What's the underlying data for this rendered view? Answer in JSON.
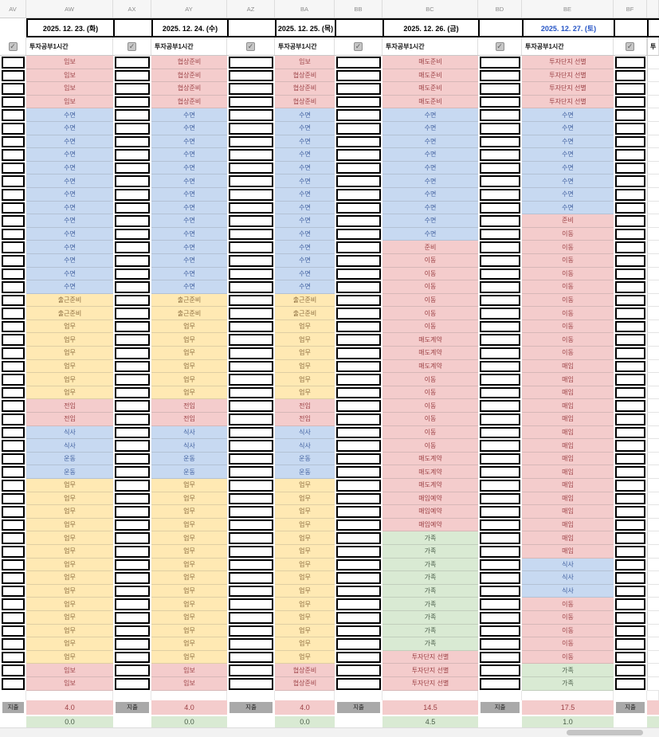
{
  "sheet": {
    "column_headers": [
      "AV",
      "AW",
      "AX",
      "AY",
      "AZ",
      "BA",
      "BB",
      "BC",
      "BD",
      "BE",
      "BF",
      ""
    ],
    "checkbox_row_label": "투자공부1시간",
    "next_day_partial_label": "투",
    "totals_label": "지출",
    "icons": {
      "checkbox_checked": "✓"
    },
    "colors": {
      "pink": {
        "bg": "#F4CCCC",
        "fg": "#9C4145"
      },
      "blue": {
        "bg": "#C7D9F1",
        "fg": "#3F5E9E"
      },
      "yellow": {
        "bg": "#FFE9B3",
        "fg": "#8A6B3D"
      },
      "green": {
        "bg": "#D9EAD3",
        "fg": "#4A5D49"
      },
      "saturday_date": "#2353C5",
      "weekday_date": "#000000",
      "totals_label_bg": "#A9A9A9"
    },
    "days": [
      {
        "column": "AW",
        "date": "2025. 12. 23. (화)",
        "is_saturday": false,
        "schedule": [
          {
            "t": "임보",
            "c": "pink",
            "n": 4
          },
          {
            "t": "수면",
            "c": "blue",
            "n": 14
          },
          {
            "t": "출근준비",
            "c": "yellow",
            "n": 2
          },
          {
            "t": "업무",
            "c": "yellow",
            "n": 6
          },
          {
            "t": "전임",
            "c": "pink",
            "n": 2
          },
          {
            "t": "식사",
            "c": "blue",
            "n": 2
          },
          {
            "t": "운동",
            "c": "blue",
            "n": 2
          },
          {
            "t": "업무",
            "c": "yellow",
            "n": 14
          },
          {
            "t": "임보",
            "c": "pink",
            "n": 2
          }
        ],
        "invest_hours": "4.0",
        "family_hours": "0.0"
      },
      {
        "column": "AY",
        "date": "2025. 12. 24. (수)",
        "is_saturday": false,
        "schedule": [
          {
            "t": "협상준비",
            "c": "pink",
            "n": 4
          },
          {
            "t": "수면",
            "c": "blue",
            "n": 14
          },
          {
            "t": "출근준비",
            "c": "yellow",
            "n": 2
          },
          {
            "t": "업무",
            "c": "yellow",
            "n": 6
          },
          {
            "t": "전임",
            "c": "pink",
            "n": 2
          },
          {
            "t": "식사",
            "c": "blue",
            "n": 2
          },
          {
            "t": "운동",
            "c": "blue",
            "n": 2
          },
          {
            "t": "업무",
            "c": "yellow",
            "n": 14
          },
          {
            "t": "임보",
            "c": "pink",
            "n": 2
          }
        ],
        "invest_hours": "4.0",
        "family_hours": "0.0"
      },
      {
        "column": "BA",
        "date": "2025. 12. 25. (목)",
        "is_saturday": false,
        "schedule": [
          {
            "t": "임보",
            "c": "pink",
            "n": 1
          },
          {
            "t": "협상준비",
            "c": "pink",
            "n": 3
          },
          {
            "t": "수면",
            "c": "blue",
            "n": 14
          },
          {
            "t": "출근준비",
            "c": "yellow",
            "n": 2
          },
          {
            "t": "업무",
            "c": "yellow",
            "n": 6
          },
          {
            "t": "전임",
            "c": "pink",
            "n": 2
          },
          {
            "t": "식사",
            "c": "blue",
            "n": 2
          },
          {
            "t": "운동",
            "c": "blue",
            "n": 2
          },
          {
            "t": "업무",
            "c": "yellow",
            "n": 14
          },
          {
            "t": "협상준비",
            "c": "pink",
            "n": 2
          }
        ],
        "invest_hours": "4.0",
        "family_hours": "0.0"
      },
      {
        "column": "BC",
        "date": "2025. 12. 26. (금)",
        "is_saturday": false,
        "schedule": [
          {
            "t": "매도준비",
            "c": "pink",
            "n": 4
          },
          {
            "t": "수면",
            "c": "blue",
            "n": 10
          },
          {
            "t": "준비",
            "c": "pink",
            "n": 1
          },
          {
            "t": "이동",
            "c": "pink",
            "n": 6
          },
          {
            "t": "매도계약",
            "c": "pink",
            "n": 3
          },
          {
            "t": "이동",
            "c": "pink",
            "n": 6
          },
          {
            "t": "매도계약",
            "c": "pink",
            "n": 3
          },
          {
            "t": "매임예약",
            "c": "pink",
            "n": 3
          },
          {
            "t": "가족",
            "c": "green",
            "n": 9
          },
          {
            "t": "투자단지 선별",
            "c": "pink",
            "n": 3
          }
        ],
        "invest_hours": "14.5",
        "family_hours": "4.5"
      },
      {
        "column": "BE",
        "date": "2025. 12. 27. (토)",
        "is_saturday": true,
        "schedule": [
          {
            "t": "투자단지 선별",
            "c": "pink",
            "n": 4
          },
          {
            "t": "수면",
            "c": "blue",
            "n": 8
          },
          {
            "t": "준비",
            "c": "pink",
            "n": 1
          },
          {
            "t": "이동",
            "c": "pink",
            "n": 10
          },
          {
            "t": "매임",
            "c": "pink",
            "n": 15
          },
          {
            "t": "식사",
            "c": "blue",
            "n": 3
          },
          {
            "t": "이동",
            "c": "pink",
            "n": 5
          },
          {
            "t": "가족",
            "c": "green",
            "n": 2
          }
        ],
        "invest_hours": "17.5",
        "family_hours": "1.0"
      }
    ]
  }
}
